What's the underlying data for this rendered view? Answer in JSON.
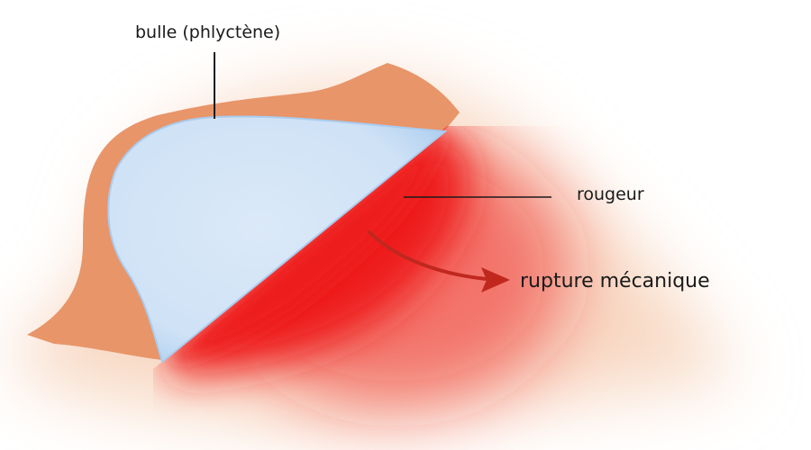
{
  "labels": {
    "blister": "bulle (phlyctène)",
    "redness": "rougeur",
    "rupture": "rupture mécanique"
  },
  "colors": {
    "skin": "#e8956a",
    "skin_light": "#f6cfb5",
    "blister_fill": "#d2e4f6",
    "blister_edge": "#a9ccef",
    "redness": "#ee1c1c",
    "arrow": "#c0281e",
    "leader_line": "#1a1a1a"
  }
}
